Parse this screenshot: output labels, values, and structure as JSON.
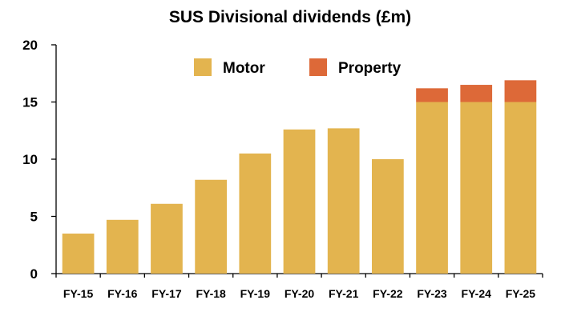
{
  "chart_data": {
    "type": "bar",
    "stacked": true,
    "title": "SUS Divisional dividends (£m)",
    "xlabel": "",
    "ylabel": "",
    "categories": [
      "FY-15",
      "FY-16",
      "FY-17",
      "FY-18",
      "FY-19",
      "FY-20",
      "FY-21",
      "FY-22",
      "FY-23",
      "FY-24",
      "FY-25"
    ],
    "series": [
      {
        "name": "Motor",
        "color": "#E3B44F",
        "values": [
          3.5,
          4.7,
          6.1,
          8.2,
          10.5,
          12.6,
          12.7,
          10.0,
          15.0,
          15.0,
          15.0
        ]
      },
      {
        "name": "Property",
        "color": "#DD6938",
        "values": [
          0,
          0,
          0,
          0,
          0,
          0,
          0,
          0,
          1.2,
          1.5,
          1.9
        ]
      }
    ],
    "ylim": [
      0,
      20
    ],
    "yticks": [
      0,
      5,
      10,
      15,
      20
    ],
    "grid": false,
    "legend_position": "top-center"
  }
}
